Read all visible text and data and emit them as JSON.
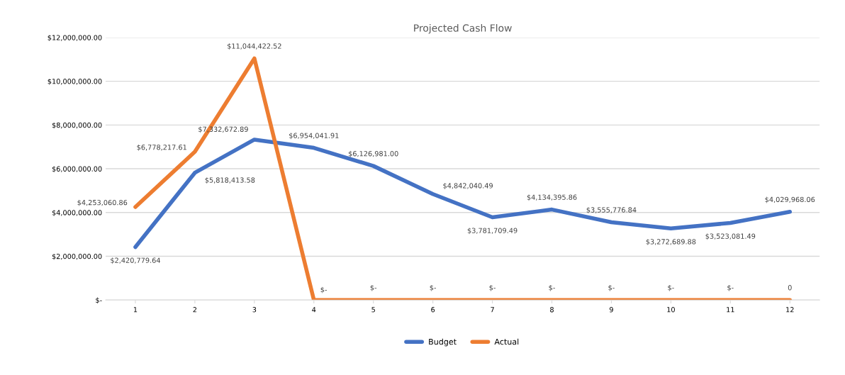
{
  "chart_data": {
    "type": "line",
    "title": "Projected Cash Flow",
    "categories": [
      "1",
      "2",
      "3",
      "4",
      "5",
      "6",
      "7",
      "8",
      "9",
      "10",
      "11",
      "12"
    ],
    "series": [
      {
        "name": "Budget",
        "color": "#4472c4",
        "values": [
          2420779.64,
          5818413.58,
          7332672.89,
          6954041.91,
          6126981.0,
          4842040.49,
          3781709.49,
          4134395.86,
          3555776.84,
          3272689.88,
          3523081.49,
          4029968.06
        ],
        "value_labels": [
          "$2,420,779.64",
          "$5,818,413.58",
          "$7,332,672.89",
          "$6,954,041.91",
          "$6,126,981.00",
          "$4,842,040.49",
          "$3,781,709.49",
          "$4,134,395.86",
          "$3,555,776.84",
          "$3,272,689.88",
          "$3,523,081.49",
          "$4,029,968.06"
        ]
      },
      {
        "name": "Actual",
        "color": "#ed7d31",
        "values": [
          4253060.86,
          6778217.61,
          11044422.52,
          0,
          0,
          0,
          0,
          0,
          0,
          0,
          0,
          0
        ],
        "value_labels": [
          "$4,253,060.86",
          "$6,778,217.61",
          "$11,044,422.52",
          "$-",
          "$-",
          "$-",
          "$-",
          "$-",
          "$-",
          "$-",
          "$-",
          "0"
        ]
      }
    ],
    "ylim": [
      0,
      12000000
    ],
    "yticks": [
      {
        "value": 0,
        "label": "$-"
      },
      {
        "value": 2000000,
        "label": "$2,000,000.00"
      },
      {
        "value": 4000000,
        "label": "$4,000,000.00"
      },
      {
        "value": 6000000,
        "label": "$6,000,000.00"
      },
      {
        "value": 8000000,
        "label": "$8,000,000.00"
      },
      {
        "value": 10000000,
        "label": "$10,000,000.00"
      },
      {
        "value": 12000000,
        "label": "$12,000,000.00"
      }
    ],
    "grid": "y",
    "legend": "bottom",
    "marker": "none",
    "line_style": "solid"
  }
}
